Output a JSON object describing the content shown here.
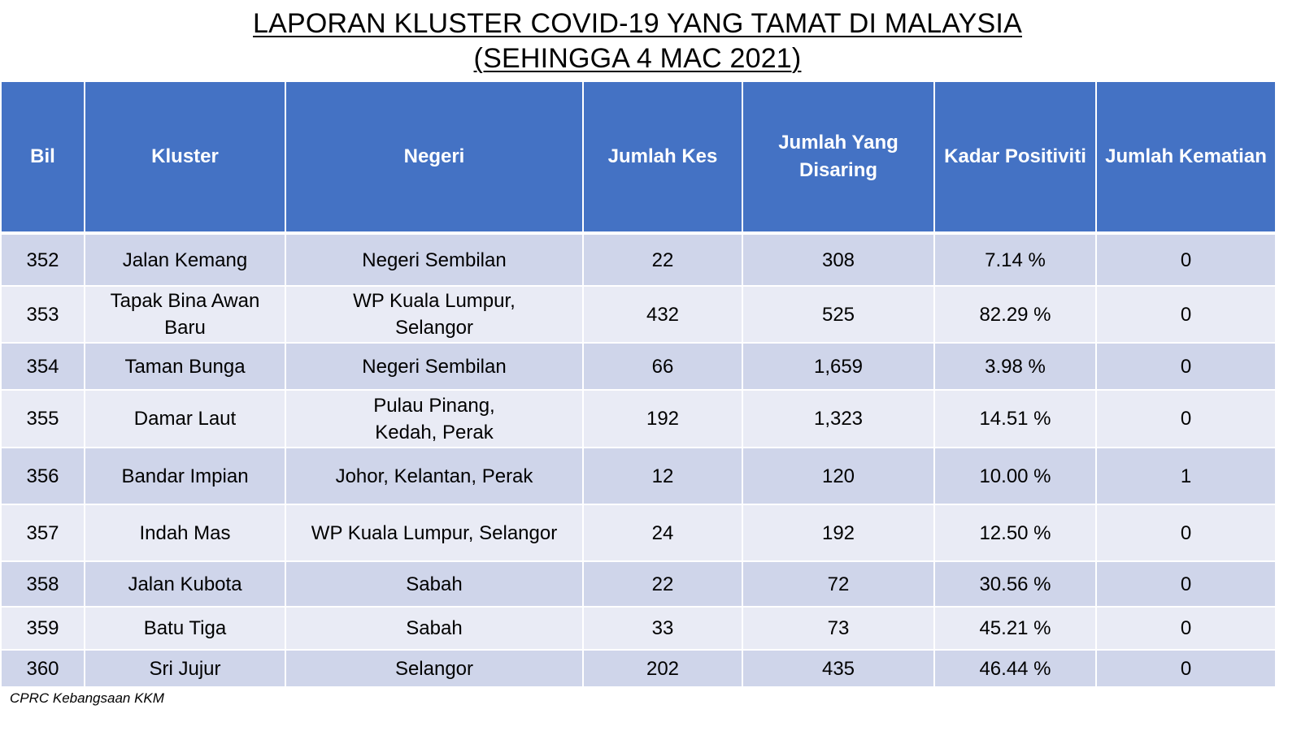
{
  "title": {
    "line1": "LAPORAN KLUSTER COVID-19 YANG TAMAT DI MALAYSIA",
    "line2": "(SEHINGGA  4 MAC 2021)"
  },
  "colors": {
    "header_bg": "#4472c4",
    "row_odd": "#cfd5ea",
    "row_even": "#e9ebf5"
  },
  "table": {
    "headers": [
      "Bil",
      "Kluster",
      "Negeri",
      "Jumlah Kes",
      "Jumlah Yang Disaring",
      "Kadar Positiviti",
      "Jumlah Kematian"
    ],
    "rows": [
      {
        "bil": "352",
        "kluster": "Jalan Kemang",
        "negeri": "Negeri Sembilan",
        "kes": "22",
        "disaring": "308",
        "positiviti": "7.14 %",
        "kematian": "0"
      },
      {
        "bil": "353",
        "kluster": "Tapak Bina Awan Baru",
        "negeri": "WP Kuala Lumpur, Selangor",
        "kes": "432",
        "disaring": "525",
        "positiviti": "82.29 %",
        "kematian": "0"
      },
      {
        "bil": "354",
        "kluster": "Taman Bunga",
        "negeri": "Negeri Sembilan",
        "kes": "66",
        "disaring": "1,659",
        "positiviti": "3.98 %",
        "kematian": "0"
      },
      {
        "bil": "355",
        "kluster": "Damar Laut",
        "negeri": "Pulau Pinang, Kedah, Perak",
        "kes": "192",
        "disaring": "1,323",
        "positiviti": "14.51 %",
        "kematian": "0"
      },
      {
        "bil": "356",
        "kluster": "Bandar Impian",
        "negeri": "Johor, Kelantan, Perak",
        "kes": "12",
        "disaring": "120",
        "positiviti": "10.00 %",
        "kematian": "1"
      },
      {
        "bil": "357",
        "kluster": "Indah Mas",
        "negeri": "WP Kuala Lumpur, Selangor",
        "kes": "24",
        "disaring": "192",
        "positiviti": "12.50 %",
        "kematian": "0"
      },
      {
        "bil": "358",
        "kluster": "Jalan Kubota",
        "negeri": "Sabah",
        "kes": "22",
        "disaring": "72",
        "positiviti": "30.56 %",
        "kematian": "0"
      },
      {
        "bil": "359",
        "kluster": "Batu Tiga",
        "negeri": "Sabah",
        "kes": "33",
        "disaring": "73",
        "positiviti": "45.21 %",
        "kematian": "0"
      },
      {
        "bil": "360",
        "kluster": "Sri Jujur",
        "negeri": "Selangor",
        "kes": "202",
        "disaring": "435",
        "positiviti": "46.44 %",
        "kematian": "0"
      }
    ]
  },
  "footer": {
    "source": "CPRC Kebangsaan KKM"
  }
}
